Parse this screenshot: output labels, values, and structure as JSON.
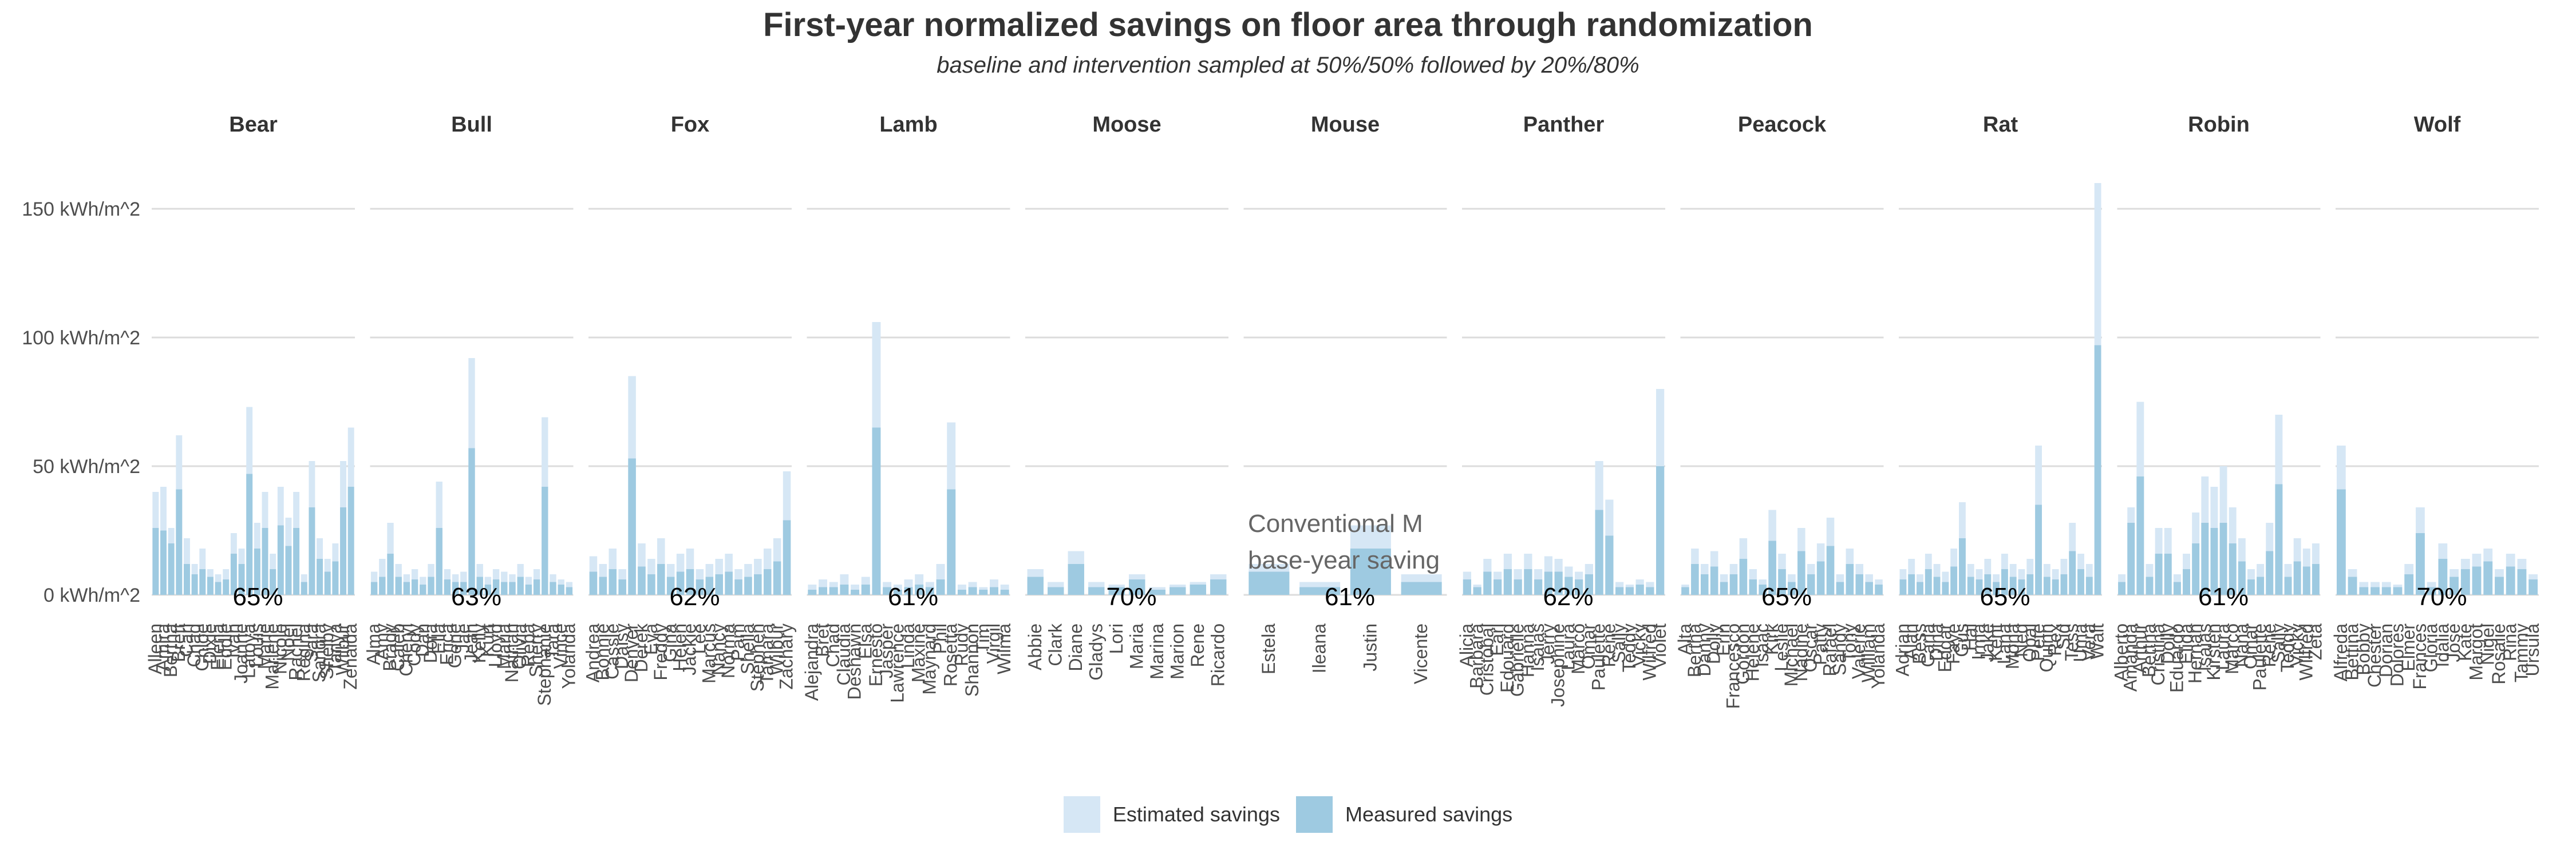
{
  "chart_data": {
    "type": "bar",
    "title": "First-year normalized savings on floor area through randomization",
    "subtitle": "baseline and intervention sampled at 50%/50% followed by 20%/80%",
    "y_ticks": [
      "0 kWh/m^2",
      "50 kWh/m^2",
      "100 kWh/m^2",
      "150 kWh/m^2"
    ],
    "y_tick_values": [
      0,
      50,
      100,
      150
    ],
    "ylim": [
      0,
      160
    ],
    "grid": true,
    "legend_position": "bottom",
    "legend": [
      {
        "label": "Estimated savings",
        "color": "#d6e7f5"
      },
      {
        "label": "Measured savings",
        "color": "#9ecae1"
      }
    ],
    "annotation_lines": [
      "Conventional M",
      "base-year saving"
    ],
    "panels": [
      {
        "name": "Bear",
        "pct": "65%",
        "labels": [
          "Alleen",
          "Amira",
          "Bertha",
          "Brett",
          "Carl",
          "Chad",
          "Chloe",
          "Dixie",
          "Elena",
          "Eddie",
          "Ivan",
          "Joanne",
          "Latoya",
          "Louis",
          "Marie",
          "Marlene",
          "Nicole",
          "Noel",
          "Rachel",
          "Regina",
          "Sara",
          "Sandra",
          "Shelby",
          "Tanya",
          "Wilbur",
          "Zenaida"
        ],
        "estimated": [
          40,
          42,
          26,
          62,
          22,
          12,
          18,
          10,
          8,
          10,
          24,
          18,
          73,
          28,
          40,
          16,
          42,
          30,
          40,
          8,
          52,
          22,
          14,
          20,
          52,
          65
        ],
        "measured": [
          26,
          25,
          20,
          41,
          12,
          8,
          10,
          7,
          5,
          6,
          16,
          12,
          47,
          18,
          26,
          10,
          27,
          19,
          26,
          5,
          34,
          14,
          9,
          13,
          34,
          42
        ]
      },
      {
        "name": "Bull",
        "pct": "63%",
        "labels": [
          "Alma",
          "Amy",
          "Brady",
          "Caleb",
          "Cheryl",
          "Cody",
          "Dan",
          "Dora",
          "Ella",
          "Erica",
          "Gene",
          "Jae",
          "Jean",
          "Kelly",
          "Kurt",
          "Lloyd",
          "Maria",
          "Nathan",
          "Olivia",
          "Reba",
          "Sherry",
          "Stephanie",
          "Tara",
          "Vince",
          "Yolanda"
        ],
        "estimated": [
          9,
          14,
          28,
          12,
          8,
          10,
          7,
          12,
          44,
          10,
          8,
          9,
          92,
          12,
          7,
          10,
          9,
          8,
          12,
          7,
          10,
          69,
          8,
          6,
          5
        ],
        "measured": [
          5,
          7,
          16,
          7,
          5,
          6,
          4,
          7,
          26,
          6,
          5,
          5,
          57,
          7,
          4,
          6,
          5,
          5,
          7,
          4,
          6,
          42,
          5,
          4,
          3
        ]
      },
      {
        "name": "Fox",
        "pct": "62%",
        "labels": [
          "Andrea",
          "Bonnie",
          "Cassie",
          "Daisy",
          "Denver",
          "Derek",
          "Eva",
          "Freddy",
          "Gina",
          "Helen",
          "Jackie",
          "Lee",
          "Marcus",
          "Nancy",
          "Norma",
          "Pam",
          "Sheila",
          "Stephen",
          "Tamara",
          "Wilbur",
          "Zachary"
        ],
        "estimated": [
          15,
          12,
          18,
          10,
          85,
          20,
          14,
          22,
          12,
          16,
          18,
          10,
          12,
          14,
          16,
          10,
          12,
          14,
          18,
          22,
          48
        ],
        "measured": [
          9,
          7,
          10,
          6,
          53,
          11,
          8,
          12,
          7,
          9,
          10,
          6,
          7,
          8,
          9,
          6,
          7,
          8,
          10,
          13,
          29
        ]
      },
      {
        "name": "Lamb",
        "pct": "61%",
        "labels": [
          "Alejandra",
          "Bret",
          "Chad",
          "Claudia",
          "Deshawn",
          "Elsa",
          "Ernesto",
          "Jasper",
          "Lawrence",
          "Linda",
          "Maxine",
          "Maynard",
          "Phil",
          "Rosetta",
          "Rudy",
          "Shannon",
          "Tim",
          "Virgil",
          "Wilma"
        ],
        "estimated": [
          4,
          6,
          5,
          8,
          4,
          7,
          106,
          5,
          4,
          6,
          8,
          5,
          12,
          67,
          4,
          5,
          3,
          6,
          4
        ],
        "measured": [
          2,
          3,
          3,
          4,
          2,
          4,
          65,
          3,
          2,
          3,
          4,
          3,
          6,
          41,
          2,
          3,
          2,
          3,
          2
        ]
      },
      {
        "name": "Moose",
        "pct": "70%",
        "labels": [
          "Abbie",
          "Clark",
          "Diane",
          "Gladys",
          "Lori",
          "Maria",
          "Marina",
          "Marion",
          "Rene",
          "Ricardo"
        ],
        "estimated": [
          10,
          5,
          17,
          5,
          4,
          8,
          3,
          4,
          5,
          8
        ],
        "measured": [
          7,
          3,
          12,
          3,
          3,
          6,
          2,
          3,
          4,
          6
        ]
      },
      {
        "name": "Mouse",
        "pct": "61%",
        "labels": [
          "Estela",
          "Ileana",
          "Justin",
          "Vicente"
        ],
        "estimated": [
          12,
          5,
          27,
          8
        ],
        "measured": [
          9,
          3,
          18,
          5
        ]
      },
      {
        "name": "Panther",
        "pct": "62%",
        "labels": [
          "Alicia",
          "Barbara",
          "Cristobal",
          "Earl",
          "Edouard",
          "Gabrielle",
          "Hanna",
          "Isaias",
          "Jerry",
          "Josephine",
          "Laura",
          "Marco",
          "Omar",
          "Paulette",
          "Rene",
          "Sally",
          "Teddy",
          "Vicky",
          "Wilfred",
          "Violet"
        ],
        "estimated": [
          9,
          4,
          14,
          9,
          16,
          10,
          16,
          10,
          15,
          14,
          11,
          9,
          12,
          52,
          37,
          5,
          4,
          6,
          5,
          80
        ],
        "measured": [
          6,
          3,
          9,
          6,
          10,
          6,
          10,
          6,
          9,
          9,
          7,
          6,
          8,
          33,
          23,
          3,
          3,
          4,
          3,
          50
        ]
      },
      {
        "name": "Peacock",
        "pct": "65%",
        "labels": [
          "Alta",
          "Bertha",
          "Danny",
          "Dolly",
          "Erin",
          "Francesco",
          "Gordon",
          "Helene",
          "Isaac",
          "Kirk",
          "Leslie",
          "Michael",
          "Nadine",
          "Oscar",
          "Patty",
          "Rafael",
          "Sandy",
          "Tony",
          "Valerie",
          "William",
          "Yolanda"
        ],
        "estimated": [
          4,
          18,
          12,
          17,
          8,
          12,
          22,
          10,
          6,
          33,
          16,
          8,
          26,
          12,
          20,
          30,
          8,
          18,
          12,
          8,
          6
        ],
        "measured": [
          3,
          12,
          8,
          11,
          5,
          8,
          14,
          6,
          4,
          21,
          10,
          5,
          17,
          8,
          13,
          19,
          5,
          12,
          8,
          5,
          4
        ]
      },
      {
        "name": "Rat",
        "pct": "65%",
        "labels": [
          "Adrian",
          "Alan",
          "Bess",
          "Carla",
          "Dina",
          "Edgar",
          "Faye",
          "Gus",
          "Hal",
          "Irma",
          "Jake",
          "Kent",
          "Lana",
          "Mona",
          "Ned",
          "Opal",
          "Pete",
          "Quinn",
          "Rex",
          "Sid",
          "Tess",
          "Uma",
          "Vera",
          "Walt"
        ],
        "estimated": [
          10,
          14,
          8,
          16,
          12,
          9,
          18,
          36,
          12,
          10,
          14,
          8,
          16,
          12,
          10,
          14,
          58,
          12,
          10,
          14,
          28,
          16,
          12,
          160
        ],
        "measured": [
          6,
          8,
          5,
          10,
          7,
          5,
          11,
          22,
          7,
          6,
          8,
          5,
          10,
          7,
          6,
          8,
          35,
          7,
          6,
          8,
          17,
          10,
          7,
          97
        ]
      },
      {
        "name": "Robin",
        "pct": "61%",
        "labels": [
          "Alberto",
          "Amanda",
          "Arthur",
          "Bertha",
          "Cristina",
          "Dolly",
          "Eduardo",
          "Elida",
          "Hernan",
          "Isaias",
          "Kirsten",
          "Laura",
          "Marco",
          "Nana",
          "Omar",
          "Paulette",
          "Rene",
          "Sally",
          "Teddy",
          "Vicky",
          "Wilfred",
          "Zeta"
        ],
        "estimated": [
          8,
          34,
          75,
          12,
          26,
          26,
          8,
          16,
          32,
          46,
          42,
          50,
          34,
          22,
          10,
          12,
          28,
          70,
          12,
          22,
          18,
          20
        ],
        "measured": [
          5,
          28,
          46,
          7,
          16,
          16,
          5,
          10,
          20,
          28,
          26,
          28,
          20,
          13,
          6,
          7,
          17,
          43,
          7,
          13,
          11,
          12
        ]
      },
      {
        "name": "Wolf",
        "pct": "70%",
        "labels": [
          "Alfreda",
          "Bettina",
          "Bobby",
          "Chester",
          "Dorian",
          "Dolores",
          "Elmer",
          "Frances",
          "Gloria",
          "Idalia",
          "Jose",
          "Kate",
          "Margot",
          "Nigel",
          "Rosalie",
          "Rina",
          "Tammy",
          "Ursula"
        ],
        "estimated": [
          58,
          10,
          5,
          5,
          5,
          4,
          12,
          34,
          5,
          20,
          10,
          14,
          16,
          18,
          10,
          16,
          14,
          8
        ],
        "measured": [
          41,
          7,
          3,
          3,
          3,
          3,
          8,
          24,
          3,
          14,
          7,
          10,
          11,
          13,
          7,
          11,
          10,
          6
        ]
      }
    ]
  }
}
